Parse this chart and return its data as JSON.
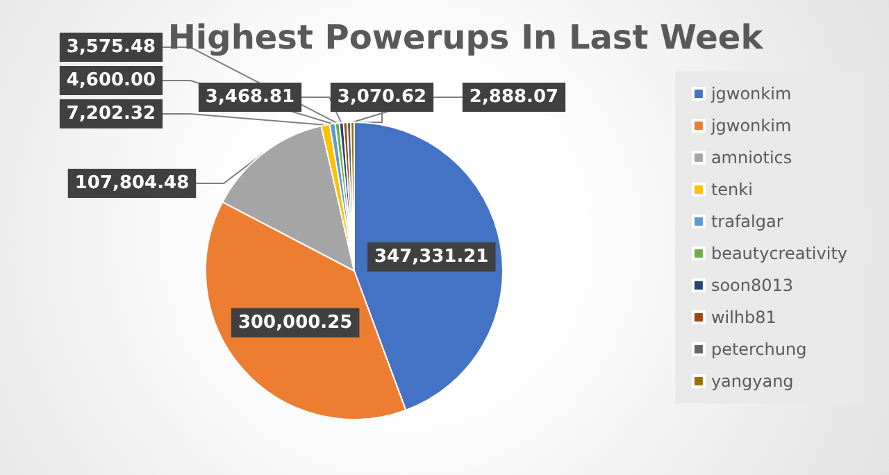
{
  "chart_data": {
    "type": "pie",
    "title": "Highest Powerups In Last Week",
    "categories": [
      "jgwonkim",
      "jgwonkim",
      "amniotics",
      "tenki",
      "trafalgar",
      "beautycreativity",
      "soon8013",
      "wilhb81",
      "peterchung",
      "yangyang"
    ],
    "values": [
      347331.21,
      300000.25,
      107804.48,
      7202.32,
      4600.0,
      3575.48,
      3468.81,
      3100,
      3070.62,
      2888.07
    ],
    "value_labels": [
      "347,331.21",
      "300,000.25",
      "107,804.48",
      "7,202.32",
      "4,600.00",
      "3,575.48",
      "3,468.81",
      null,
      "3,070.62",
      "2,888.07"
    ],
    "colors": [
      "#4472c4",
      "#ed7d31",
      "#a5a5a5",
      "#ffc000",
      "#5b9bd5",
      "#70ad47",
      "#264478",
      "#9e480e",
      "#636363",
      "#997300"
    ],
    "legend": "right"
  }
}
